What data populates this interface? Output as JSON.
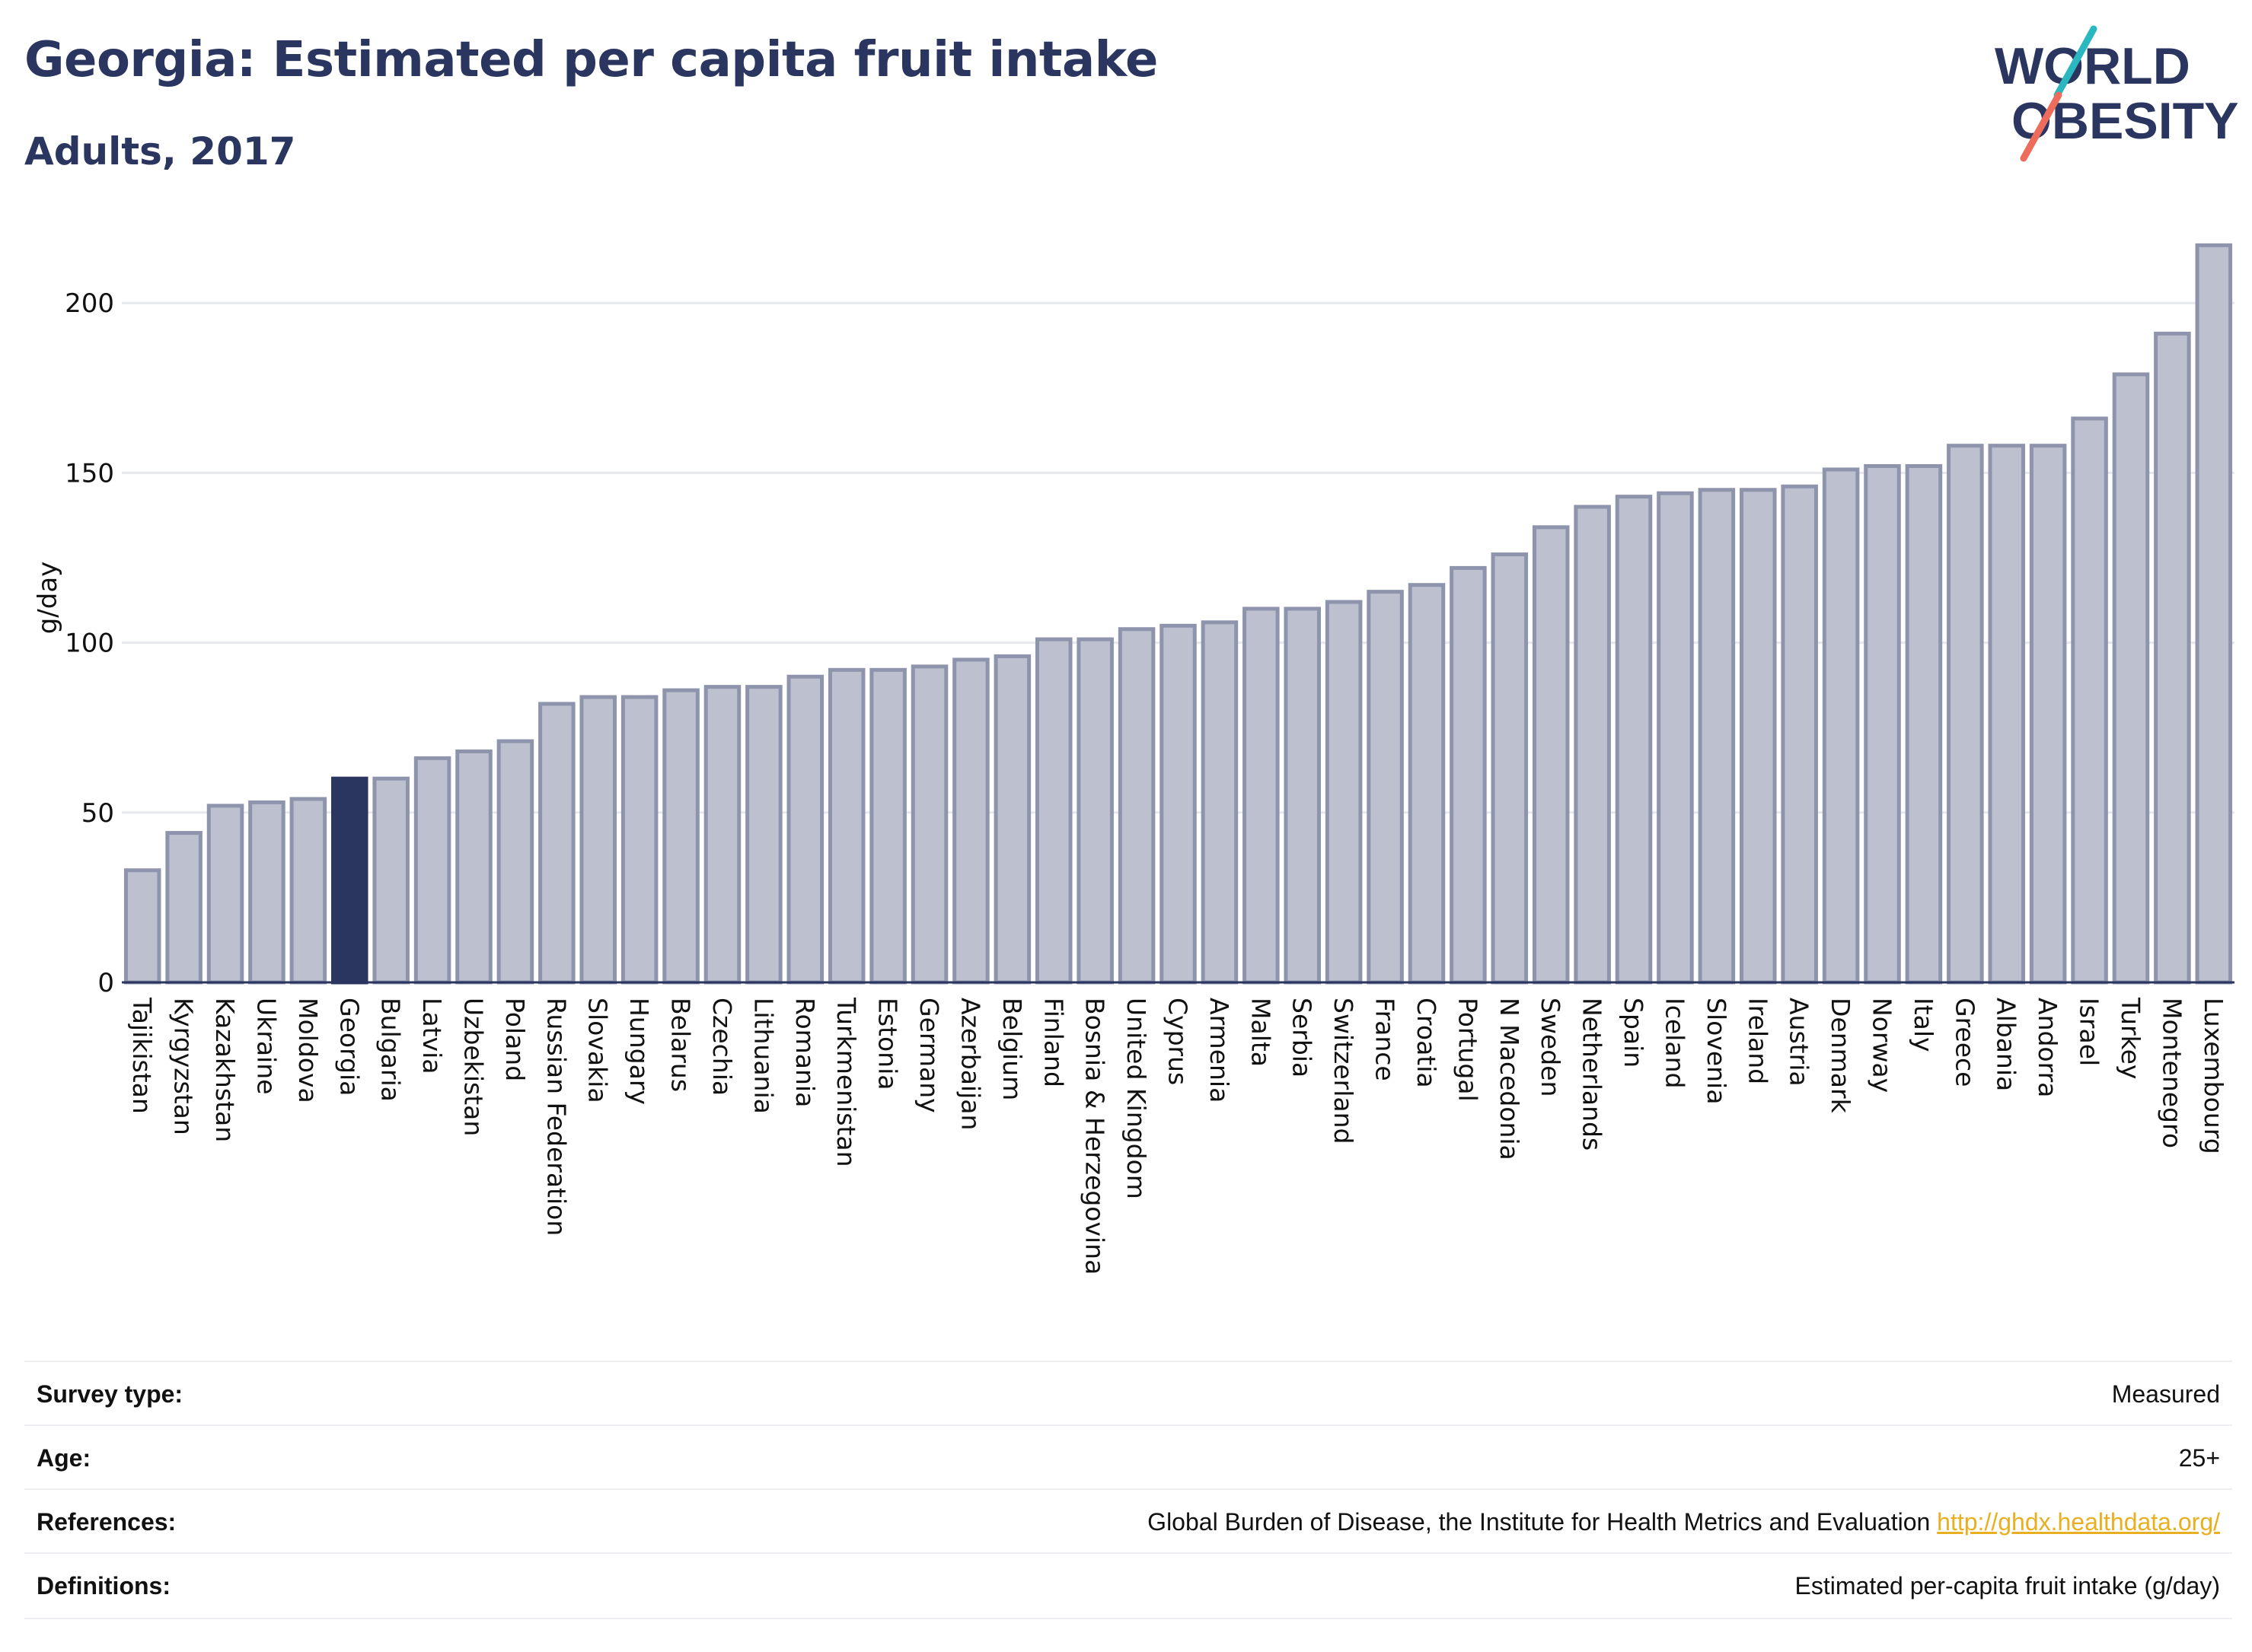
{
  "header": {
    "title": "Georgia: Estimated per capita fruit intake",
    "subtitle": "Adults, 2017"
  },
  "logo": {
    "line1": "WORLD",
    "line2": "OBESITY"
  },
  "colors": {
    "highlight": "#2b3660",
    "bar_fill": "#bcc0cf",
    "bar_stroke": "#8e94ac",
    "grid": "#e6e8ee",
    "logo_teal": "#2bb7c0",
    "logo_coral": "#ee6c5b",
    "link": "#e8b020"
  },
  "chart_data": {
    "type": "bar",
    "title": "Georgia: Estimated per capita fruit intake",
    "subtitle": "Adults, 2017",
    "ylabel": "g/day",
    "xlabel": "",
    "ylim": [
      0,
      222
    ],
    "yticks": [
      0,
      50,
      100,
      150,
      200
    ],
    "grid": true,
    "highlight": "Georgia",
    "categories": [
      "Tajikistan",
      "Kyrgyzstan",
      "Kazakhstan",
      "Ukraine",
      "Moldova",
      "Georgia",
      "Bulgaria",
      "Latvia",
      "Uzbekistan",
      "Poland",
      "Russian Federation",
      "Slovakia",
      "Hungary",
      "Belarus",
      "Czechia",
      "Lithuania",
      "Romania",
      "Turkmenistan",
      "Estonia",
      "Germany",
      "Azerbaijan",
      "Belgium",
      "Finland",
      "Bosnia & Herzegovina",
      "United Kingdom",
      "Cyprus",
      "Armenia",
      "Malta",
      "Serbia",
      "Switzerland",
      "France",
      "Croatia",
      "Portugal",
      "N Macedonia",
      "Sweden",
      "Netherlands",
      "Spain",
      "Iceland",
      "Slovenia",
      "Ireland",
      "Austria",
      "Denmark",
      "Norway",
      "Italy",
      "Greece",
      "Albania",
      "Andorra",
      "Israel",
      "Turkey",
      "Montenegro",
      "Luxembourg"
    ],
    "values": [
      33,
      44,
      52,
      53,
      54,
      60,
      60,
      66,
      68,
      71,
      82,
      84,
      84,
      86,
      87,
      87,
      90,
      92,
      92,
      93,
      95,
      96,
      101,
      101,
      104,
      105,
      106,
      110,
      110,
      112,
      115,
      117,
      122,
      126,
      134,
      140,
      143,
      144,
      145,
      145,
      146,
      151,
      152,
      152,
      158,
      158,
      158,
      166,
      179,
      191,
      217
    ]
  },
  "info": [
    {
      "label": "Survey type:",
      "value": "Measured"
    },
    {
      "label": "Age:",
      "value": "25+"
    },
    {
      "label": "References:",
      "value": "Global Burden of Disease, the Institute for Health Metrics and Evaluation",
      "link": "http://ghdx.healthdata.org/"
    },
    {
      "label": "Definitions:",
      "value": "Estimated per-capita fruit intake (g/day)"
    }
  ]
}
